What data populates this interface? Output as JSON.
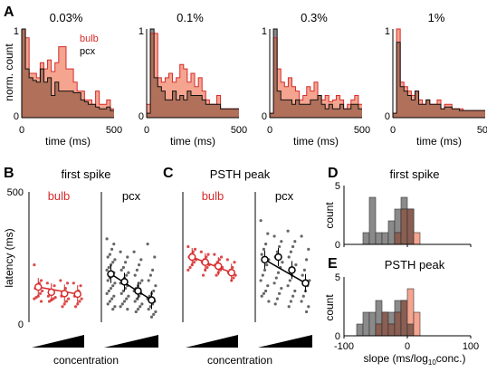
{
  "colors": {
    "bulb": "#d72b2b",
    "bulb_fill": "#f4a48f",
    "pcx_fill": "#8a8a8a",
    "pcx_line": "#111111",
    "overlap": "#b0705a",
    "slope_overlap": "#8a5e52"
  },
  "panels": {
    "A": {
      "letter": "A",
      "ylabel": "norm. count",
      "xlabel": "time (ms)",
      "legend_bulb": "bulb",
      "legend_pcx": "pcx",
      "ytick_0": "0",
      "ytick_1": "1",
      "titles": [
        "0.03%",
        "0.1%",
        "0.3%",
        "1%"
      ],
      "xticks": [
        "0",
        "500"
      ]
    },
    "B": {
      "letter": "B",
      "title": "first spike",
      "label_bulb": "bulb",
      "label_pcx": "pcx",
      "ylabel": "latency (ms)",
      "ytick_top": "500",
      "ytick_bottom": "0",
      "xlabel": "concentration"
    },
    "C": {
      "letter": "C",
      "title": "PSTH peak",
      "label_bulb": "bulb",
      "label_pcx": "pcx",
      "xlabel": "concentration"
    },
    "D": {
      "letter": "D",
      "title": "first spike",
      "ylabel": "count",
      "yticks": [
        "0",
        "5"
      ]
    },
    "E": {
      "letter": "E",
      "title": "PSTH peak",
      "ylabel": "count",
      "yticks": [
        "0",
        "5"
      ],
      "xticks": [
        "-100",
        "0",
        "100"
      ],
      "xlabel_main": "slope (ms/log",
      "xlabel_sub": "10",
      "xlabel_end": "conc.)"
    }
  },
  "chart_data": [
    {
      "type": "area",
      "panel": "A1",
      "title": "0.03%",
      "xlim": [
        0,
        500
      ],
      "ylim": [
        0,
        1
      ],
      "bin_width": 20,
      "series": [
        {
          "name": "bulb",
          "values": [
            1.0,
            0.9,
            0.5,
            0.5,
            0.45,
            0.62,
            0.55,
            0.65,
            0.52,
            0.62,
            0.8,
            0.8,
            0.55,
            0.55,
            0.4,
            0.3,
            0.3,
            0.2,
            0.2,
            0.15,
            0.3,
            0.15,
            0.15,
            0.2,
            0.1
          ]
        },
        {
          "name": "pcx",
          "values": [
            1.0,
            0.55,
            0.45,
            0.42,
            0.4,
            0.55,
            0.4,
            0.45,
            0.25,
            0.4,
            0.3,
            0.3,
            0.3,
            0.3,
            0.28,
            0.28,
            0.2,
            0.18,
            0.15,
            0.15,
            0.12,
            0.1,
            0.1,
            0.12,
            0.08
          ]
        }
      ]
    },
    {
      "type": "area",
      "panel": "A2",
      "title": "0.1%",
      "xlim": [
        0,
        500
      ],
      "ylim": [
        0,
        1
      ],
      "bin_width": 20,
      "series": [
        {
          "name": "bulb",
          "values": [
            0.15,
            0.95,
            0.95,
            0.45,
            0.4,
            0.45,
            0.5,
            0.4,
            0.45,
            0.6,
            0.55,
            0.4,
            0.5,
            0.35,
            0.45,
            0.3,
            0.2,
            0.15,
            0.15,
            0.25,
            0.1,
            0.1,
            0.1,
            0.1,
            0.1
          ]
        },
        {
          "name": "pcx",
          "values": [
            0.05,
            1.0,
            0.45,
            0.35,
            0.3,
            0.2,
            0.2,
            0.3,
            0.2,
            0.25,
            0.2,
            0.3,
            0.25,
            0.25,
            0.25,
            0.2,
            0.15,
            0.15,
            0.15,
            0.15,
            0.1,
            0.1,
            0.1,
            0.1,
            0.1
          ]
        }
      ]
    },
    {
      "type": "area",
      "panel": "A3",
      "title": "0.3%",
      "xlim": [
        0,
        500
      ],
      "ylim": [
        0,
        1
      ],
      "bin_width": 20,
      "series": [
        {
          "name": "bulb",
          "values": [
            0.05,
            0.9,
            0.55,
            0.4,
            0.35,
            0.45,
            0.35,
            0.3,
            0.2,
            0.25,
            0.35,
            0.3,
            0.4,
            0.25,
            0.2,
            0.25,
            0.18,
            0.2,
            0.25,
            0.2,
            0.1,
            0.15,
            0.2,
            0.25,
            0.15
          ]
        },
        {
          "name": "pcx",
          "values": [
            0.05,
            1.0,
            0.3,
            0.2,
            0.2,
            0.2,
            0.15,
            0.2,
            0.15,
            0.15,
            0.15,
            0.2,
            0.2,
            0.25,
            0.15,
            0.1,
            0.15,
            0.1,
            0.1,
            0.15,
            0.1,
            0.1,
            0.15,
            0.15,
            0.1
          ]
        }
      ]
    },
    {
      "type": "area",
      "panel": "A4",
      "title": "1%",
      "xlim": [
        0,
        500
      ],
      "ylim": [
        0,
        1
      ],
      "bin_width": 20,
      "series": [
        {
          "name": "bulb",
          "values": [
            0.05,
            1.0,
            0.4,
            0.35,
            0.3,
            0.25,
            0.3,
            0.2,
            0.15,
            0.2,
            0.15,
            0.15,
            0.2,
            0.1,
            0.15,
            0.15,
            0.1,
            0.1,
            0.1,
            0.08,
            0.08,
            0.08,
            0.08,
            0.08,
            0.08
          ]
        },
        {
          "name": "pcx",
          "values": [
            0.05,
            0.85,
            0.35,
            0.3,
            0.25,
            0.2,
            0.3,
            0.15,
            0.15,
            0.2,
            0.15,
            0.15,
            0.15,
            0.1,
            0.12,
            0.12,
            0.1,
            0.1,
            0.08,
            0.08,
            0.08,
            0.08,
            0.08,
            0.08,
            0.08
          ]
        }
      ]
    },
    {
      "type": "scatter",
      "panel": "B-bulb",
      "title": "first spike",
      "ylabel": "latency (ms)",
      "ylim": [
        0,
        500
      ],
      "categories": [
        "1",
        "2",
        "3",
        "4"
      ],
      "means": [
        135,
        115,
        110,
        108
      ],
      "points": [
        [
          220,
          160,
          150,
          140,
          130,
          120,
          110,
          100,
          95,
          90,
          80
        ],
        [
          150,
          140,
          120,
          110,
          100,
          95,
          90,
          85,
          80
        ],
        [
          160,
          150,
          130,
          110,
          100,
          90,
          80,
          70,
          60
        ],
        [
          150,
          140,
          120,
          110,
          100,
          90,
          80,
          70,
          60
        ]
      ]
    },
    {
      "type": "scatter",
      "panel": "B-pcx",
      "title": "first spike",
      "ylim": [
        0,
        500
      ],
      "categories": [
        "1",
        "2",
        "3",
        "4"
      ],
      "means": [
        185,
        155,
        120,
        85
      ],
      "points": [
        [
          320,
          300,
          280,
          260,
          250,
          240,
          230,
          220,
          210,
          200,
          190,
          180,
          170,
          160,
          150,
          140,
          130,
          120,
          110,
          100,
          90,
          80,
          70,
          60,
          50
        ],
        [
          270,
          250,
          230,
          210,
          200,
          190,
          180,
          170,
          160,
          150,
          140,
          130,
          120,
          110,
          100,
          90,
          80,
          70,
          60,
          50
        ],
        [
          270,
          240,
          220,
          200,
          180,
          160,
          150,
          140,
          130,
          120,
          110,
          100,
          90,
          80,
          70,
          60,
          50,
          40
        ],
        [
          300,
          250,
          200,
          180,
          160,
          140,
          120,
          110,
          100,
          90,
          80,
          70,
          60,
          50,
          40,
          30,
          20
        ]
      ]
    },
    {
      "type": "scatter",
      "panel": "C-bulb",
      "title": "PSTH peak",
      "ylim": [
        0,
        500
      ],
      "categories": [
        "1",
        "2",
        "3",
        "4"
      ],
      "means": [
        250,
        230,
        215,
        190
      ],
      "points": [
        [
          290,
          280,
          270,
          260,
          250,
          240,
          230,
          220,
          210,
          200
        ],
        [
          270,
          260,
          250,
          240,
          230,
          220,
          210,
          200,
          180
        ],
        [
          260,
          250,
          240,
          230,
          220,
          210,
          200,
          190,
          180
        ],
        [
          240,
          230,
          210,
          200,
          190,
          180,
          170,
          160
        ]
      ]
    },
    {
      "type": "scatter",
      "panel": "C-pcx",
      "title": "PSTH peak",
      "ylim": [
        0,
        500
      ],
      "categories": [
        "1",
        "2",
        "3",
        "4"
      ],
      "means": [
        240,
        250,
        200,
        150
      ],
      "points": [
        [
          390,
          340,
          300,
          280,
          260,
          240,
          220,
          200,
          180,
          160,
          140,
          120,
          110,
          100,
          80
        ],
        [
          330,
          310,
          290,
          270,
          250,
          230,
          210,
          190,
          170,
          150,
          130,
          110,
          90,
          70
        ],
        [
          350,
          310,
          290,
          270,
          250,
          220,
          200,
          180,
          160,
          140,
          120,
          100,
          80,
          60
        ],
        [
          330,
          280,
          240,
          200,
          180,
          160,
          140,
          120,
          100,
          80,
          60,
          40
        ]
      ]
    },
    {
      "type": "bar",
      "panel": "D",
      "title": "first spike",
      "xlabel": "slope (ms/log10conc.)",
      "ylabel": "count",
      "xlim": [
        -100,
        100
      ],
      "ylim": [
        0,
        5
      ],
      "bin_width": 10,
      "bin_starts": [
        -70,
        -60,
        -50,
        -40,
        -30,
        -20,
        -10,
        0,
        10
      ],
      "series": [
        {
          "name": "pcx",
          "values": [
            1,
            4,
            1,
            1,
            2,
            3,
            4,
            3,
            0
          ]
        },
        {
          "name": "bulb",
          "values": [
            0,
            0,
            0,
            0,
            0,
            1,
            3,
            3,
            1
          ]
        }
      ]
    },
    {
      "type": "bar",
      "panel": "E",
      "title": "PSTH peak",
      "xlabel": "slope (ms/log10conc.)",
      "ylabel": "count",
      "xlim": [
        -100,
        100
      ],
      "ylim": [
        0,
        5
      ],
      "bin_width": 10,
      "bin_starts": [
        -80,
        -70,
        -60,
        -50,
        -40,
        -30,
        -20,
        -10,
        0,
        10
      ],
      "series": [
        {
          "name": "pcx",
          "values": [
            1,
            2,
            2,
            3,
            2,
            2,
            3,
            3,
            1,
            0
          ]
        },
        {
          "name": "bulb",
          "values": [
            0,
            0,
            0,
            1,
            2,
            1,
            2,
            3,
            4,
            2
          ]
        }
      ]
    }
  ]
}
